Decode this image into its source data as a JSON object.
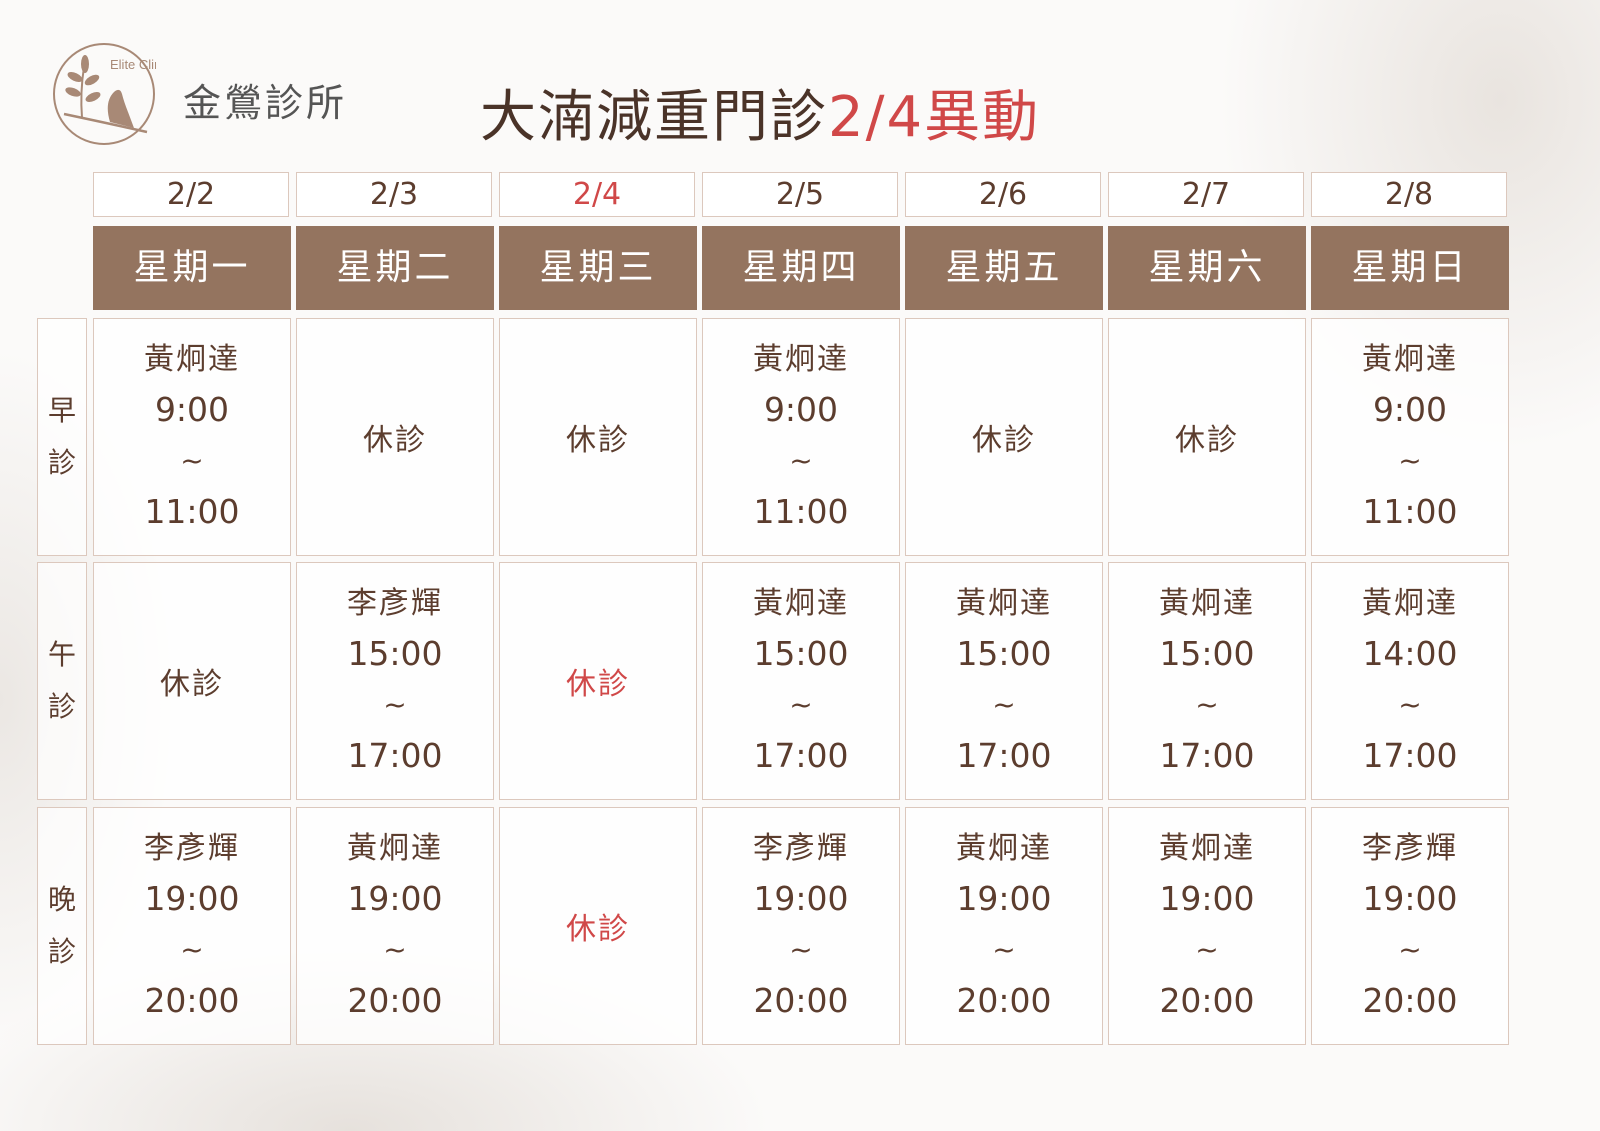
{
  "header": {
    "logo_text": "Elite Clinic",
    "clinic_name": "金鶯診所",
    "title": "大湳減重門診",
    "title_highlight": "2/4異動"
  },
  "colors": {
    "header_bg": "#94745f",
    "text": "#5c3d2e",
    "highlight": "#d04848",
    "border": "#dcc8bd"
  },
  "days": [
    {
      "date": "2/2",
      "weekday": "星期一",
      "highlight": false
    },
    {
      "date": "2/3",
      "weekday": "星期二",
      "highlight": false
    },
    {
      "date": "2/4",
      "weekday": "星期三",
      "highlight": true
    },
    {
      "date": "2/5",
      "weekday": "星期四",
      "highlight": false
    },
    {
      "date": "2/6",
      "weekday": "星期五",
      "highlight": false
    },
    {
      "date": "2/7",
      "weekday": "星期六",
      "highlight": false
    },
    {
      "date": "2/8",
      "weekday": "星期日",
      "highlight": false
    }
  ],
  "sessions": [
    {
      "label": [
        "早",
        "診"
      ],
      "cells": [
        {
          "doctor": "黃炯達",
          "start": "9:00",
          "sep": "~",
          "end": "11:00"
        },
        {
          "closed": "休診"
        },
        {
          "closed": "休診"
        },
        {
          "doctor": "黃炯達",
          "start": "9:00",
          "sep": "~",
          "end": "11:00"
        },
        {
          "closed": "休診"
        },
        {
          "closed": "休診"
        },
        {
          "doctor": "黃炯達",
          "start": "9:00",
          "sep": "~",
          "end": "11:00"
        }
      ]
    },
    {
      "label": [
        "午",
        "診"
      ],
      "cells": [
        {
          "closed": "休診"
        },
        {
          "doctor": "李彥輝",
          "start": "15:00",
          "sep": "~",
          "end": "17:00"
        },
        {
          "closed": "休診",
          "highlight": true
        },
        {
          "doctor": "黃炯達",
          "start": "15:00",
          "sep": "~",
          "end": "17:00"
        },
        {
          "doctor": "黃炯達",
          "start": "15:00",
          "sep": "~",
          "end": "17:00"
        },
        {
          "doctor": "黃炯達",
          "start": "15:00",
          "sep": "~",
          "end": "17:00"
        },
        {
          "doctor": "黃炯達",
          "start": "14:00",
          "sep": "~",
          "end": "17:00"
        }
      ]
    },
    {
      "label": [
        "晚",
        "診"
      ],
      "cells": [
        {
          "doctor": "李彥輝",
          "start": "19:00",
          "sep": "~",
          "end": "20:00"
        },
        {
          "doctor": "黃炯達",
          "start": "19:00",
          "sep": "~",
          "end": "20:00"
        },
        {
          "closed": "休診",
          "highlight": true
        },
        {
          "doctor": "李彥輝",
          "start": "19:00",
          "sep": "~",
          "end": "20:00"
        },
        {
          "doctor": "黃炯達",
          "start": "19:00",
          "sep": "~",
          "end": "20:00"
        },
        {
          "doctor": "黃炯達",
          "start": "19:00",
          "sep": "~",
          "end": "20:00"
        },
        {
          "doctor": "李彥輝",
          "start": "19:00",
          "sep": "~",
          "end": "20:00"
        }
      ]
    }
  ]
}
